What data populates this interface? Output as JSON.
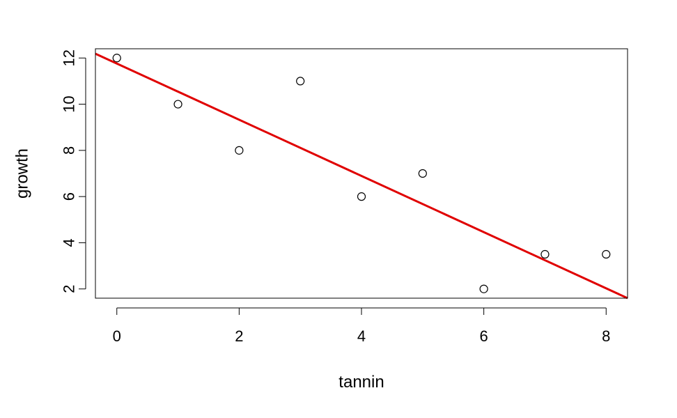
{
  "chart_data": {
    "type": "scatter",
    "title": "",
    "xlabel": "tannin",
    "ylabel": "growth",
    "xlim": [
      -0.35,
      8.35
    ],
    "ylim": [
      1.6,
      12.4
    ],
    "xticks": [
      0,
      2,
      4,
      6,
      8
    ],
    "yticks": [
      2,
      4,
      6,
      8,
      10,
      12
    ],
    "grid": false,
    "series": [
      {
        "x": [
          0,
          1,
          2,
          3,
          4,
          5,
          6,
          7,
          8
        ],
        "y": [
          12,
          10,
          8,
          11,
          6,
          7,
          2,
          3.5,
          3.5
        ],
        "marker": "open-circle",
        "color": "#000000"
      }
    ],
    "fit_line": {
      "type": "linear",
      "intercept": 11.76,
      "slope": -1.2167,
      "color": "#e00000"
    }
  }
}
